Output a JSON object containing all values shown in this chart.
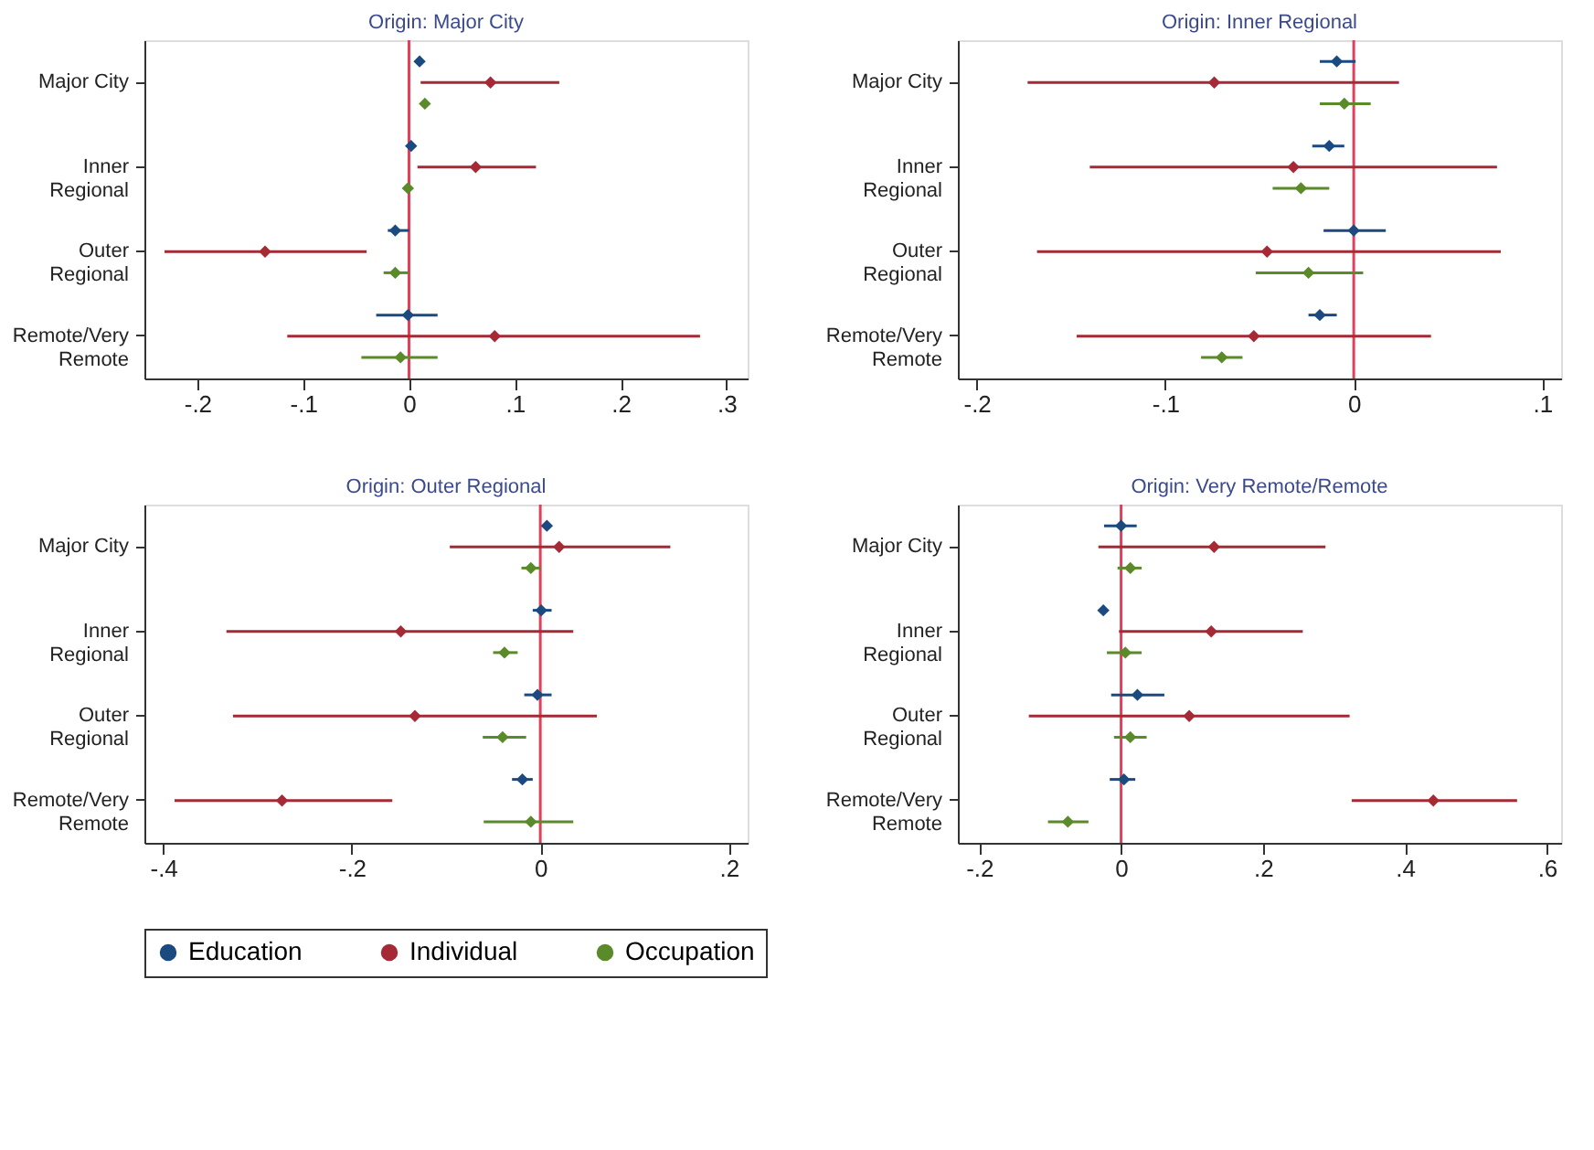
{
  "chart_data": [
    {
      "type": "scatter",
      "orientation": "horizontal",
      "title": "Origin: Major City",
      "categories": [
        "Major City",
        "Inner Regional",
        "Outer Regional",
        "Remote/Very Remote"
      ],
      "xlim": [
        -0.25,
        0.32
      ],
      "xticks": [
        {
          "value": -0.2,
          "label": "-.2"
        },
        {
          "value": -0.1,
          "label": "-.1"
        },
        0,
        {
          "value": 0.1,
          "label": ".1"
        },
        {
          "value": 0.2,
          "label": ".2"
        },
        {
          "value": 0.3,
          "label": ".3"
        }
      ],
      "marker": "diamond",
      "grid": false,
      "legend": "bottom",
      "ref_lines": [
        {
          "axis": "x",
          "value": 0,
          "color": "#e0405a"
        }
      ],
      "series": [
        {
          "name": "Education",
          "color": "#1a4a80",
          "values": [
            0.01,
            0.002,
            -0.013,
            -0.001
          ],
          "errors": [
            null,
            null,
            [
              -0.02,
              0.0
            ],
            [
              -0.031,
              0.027
            ]
          ]
        },
        {
          "name": "Individual",
          "color": "#a52a35",
          "values": [
            0.077,
            0.063,
            -0.136,
            0.081
          ],
          "errors": [
            [
              0.011,
              0.142
            ],
            [
              0.008,
              0.12
            ],
            [
              -0.231,
              -0.04
            ],
            [
              -0.115,
              0.275
            ]
          ]
        },
        {
          "name": "Occupation",
          "color": "#5a8a2a",
          "values": [
            0.015,
            -0.001,
            -0.013,
            -0.008
          ],
          "errors": [
            null,
            null,
            [
              -0.024,
              0.0
            ],
            [
              -0.045,
              0.027
            ]
          ]
        }
      ]
    },
    {
      "type": "scatter",
      "orientation": "horizontal",
      "title": "Origin: Inner Regional",
      "categories": [
        "Major City",
        "Inner Regional",
        "Outer Regional",
        "Remote/Very Remote"
      ],
      "xlim": [
        -0.21,
        0.11
      ],
      "xticks": [
        {
          "value": -0.2,
          "label": "-.2"
        },
        {
          "value": -0.1,
          "label": "-.1"
        },
        0,
        {
          "value": 0.1,
          "label": ".1"
        }
      ],
      "marker": "diamond",
      "grid": false,
      "ref_lines": [
        {
          "axis": "x",
          "value": 0,
          "color": "#e0405a"
        }
      ],
      "series": [
        {
          "name": "Education",
          "color": "#1a4a80",
          "values": [
            -0.009,
            -0.013,
            0.0,
            -0.018
          ],
          "errors": [
            [
              -0.018,
              0.001
            ],
            [
              -0.022,
              -0.005
            ],
            [
              -0.016,
              0.017
            ],
            [
              -0.024,
              -0.009
            ]
          ]
        },
        {
          "name": "Individual",
          "color": "#a52a35",
          "values": [
            -0.074,
            -0.032,
            -0.046,
            -0.053
          ],
          "errors": [
            [
              -0.173,
              0.024
            ],
            [
              -0.14,
              0.076
            ],
            [
              -0.168,
              0.078
            ],
            [
              -0.147,
              0.041
            ]
          ]
        },
        {
          "name": "Occupation",
          "color": "#5a8a2a",
          "values": [
            -0.005,
            -0.028,
            -0.024,
            -0.07
          ],
          "errors": [
            [
              -0.018,
              0.009
            ],
            [
              -0.043,
              -0.013
            ],
            [
              -0.052,
              0.005
            ],
            [
              -0.081,
              -0.059
            ]
          ]
        }
      ]
    },
    {
      "type": "scatter",
      "orientation": "horizontal",
      "title": "Origin: Outer Regional",
      "categories": [
        "Major City",
        "Inner Regional",
        "Outer Regional",
        "Remote/Very Remote"
      ],
      "xlim": [
        -0.42,
        0.22
      ],
      "xticks": [
        {
          "value": -0.4,
          "label": "-.4"
        },
        {
          "value": -0.2,
          "label": "-.2"
        },
        0,
        {
          "value": 0.2,
          "label": ".2"
        }
      ],
      "marker": "diamond",
      "grid": false,
      "ref_lines": [
        {
          "axis": "x",
          "value": 0,
          "color": "#e0405a"
        }
      ],
      "series": [
        {
          "name": "Education",
          "color": "#1a4a80",
          "values": [
            0.007,
            0.001,
            -0.003,
            -0.019
          ],
          "errors": [
            null,
            [
              -0.008,
              0.012
            ],
            [
              -0.017,
              0.012
            ],
            [
              -0.03,
              -0.008
            ]
          ]
        },
        {
          "name": "Individual",
          "color": "#a52a35",
          "values": [
            0.02,
            -0.148,
            -0.133,
            -0.274
          ],
          "errors": [
            [
              -0.096,
              0.138
            ],
            [
              -0.333,
              0.035
            ],
            [
              -0.326,
              0.06
            ],
            [
              -0.388,
              -0.157
            ]
          ]
        },
        {
          "name": "Occupation",
          "color": "#5a8a2a",
          "values": [
            -0.01,
            -0.038,
            -0.04,
            -0.01
          ],
          "errors": [
            [
              -0.02,
              0.0
            ],
            [
              -0.05,
              -0.024
            ],
            [
              -0.061,
              -0.015
            ],
            [
              -0.06,
              0.035
            ]
          ]
        }
      ]
    },
    {
      "type": "scatter",
      "orientation": "horizontal",
      "title": "Origin: Very Remote/Remote",
      "categories": [
        "Major City",
        "Inner Regional",
        "Outer Regional",
        "Remote/Very Remote"
      ],
      "xlim": [
        -0.23,
        0.62
      ],
      "xticks": [
        {
          "value": -0.2,
          "label": "-.2"
        },
        0,
        {
          "value": 0.2,
          "label": ".2"
        },
        {
          "value": 0.4,
          "label": ".4"
        },
        {
          "value": 0.6,
          "label": ".6"
        }
      ],
      "marker": "diamond",
      "grid": false,
      "ref_lines": [
        {
          "axis": "x",
          "value": 0,
          "color": "#e0405a"
        }
      ],
      "series": [
        {
          "name": "Education",
          "color": "#1a4a80",
          "values": [
            0.0,
            -0.025,
            0.023,
            0.004
          ],
          "errors": [
            [
              -0.024,
              0.022
            ],
            null,
            [
              -0.014,
              0.061
            ],
            [
              -0.016,
              0.02
            ]
          ]
        },
        {
          "name": "Individual",
          "color": "#a52a35",
          "values": [
            0.131,
            0.127,
            0.096,
            0.44
          ],
          "errors": [
            [
              -0.032,
              0.288
            ],
            [
              -0.003,
              0.256
            ],
            [
              -0.13,
              0.322
            ],
            [
              0.325,
              0.558
            ]
          ]
        },
        {
          "name": "Occupation",
          "color": "#5a8a2a",
          "values": [
            0.013,
            0.006,
            0.013,
            -0.075
          ],
          "errors": [
            [
              -0.005,
              0.029
            ],
            [
              -0.02,
              0.029
            ],
            [
              -0.01,
              0.036
            ],
            [
              -0.103,
              -0.046
            ]
          ]
        }
      ]
    }
  ]
}
